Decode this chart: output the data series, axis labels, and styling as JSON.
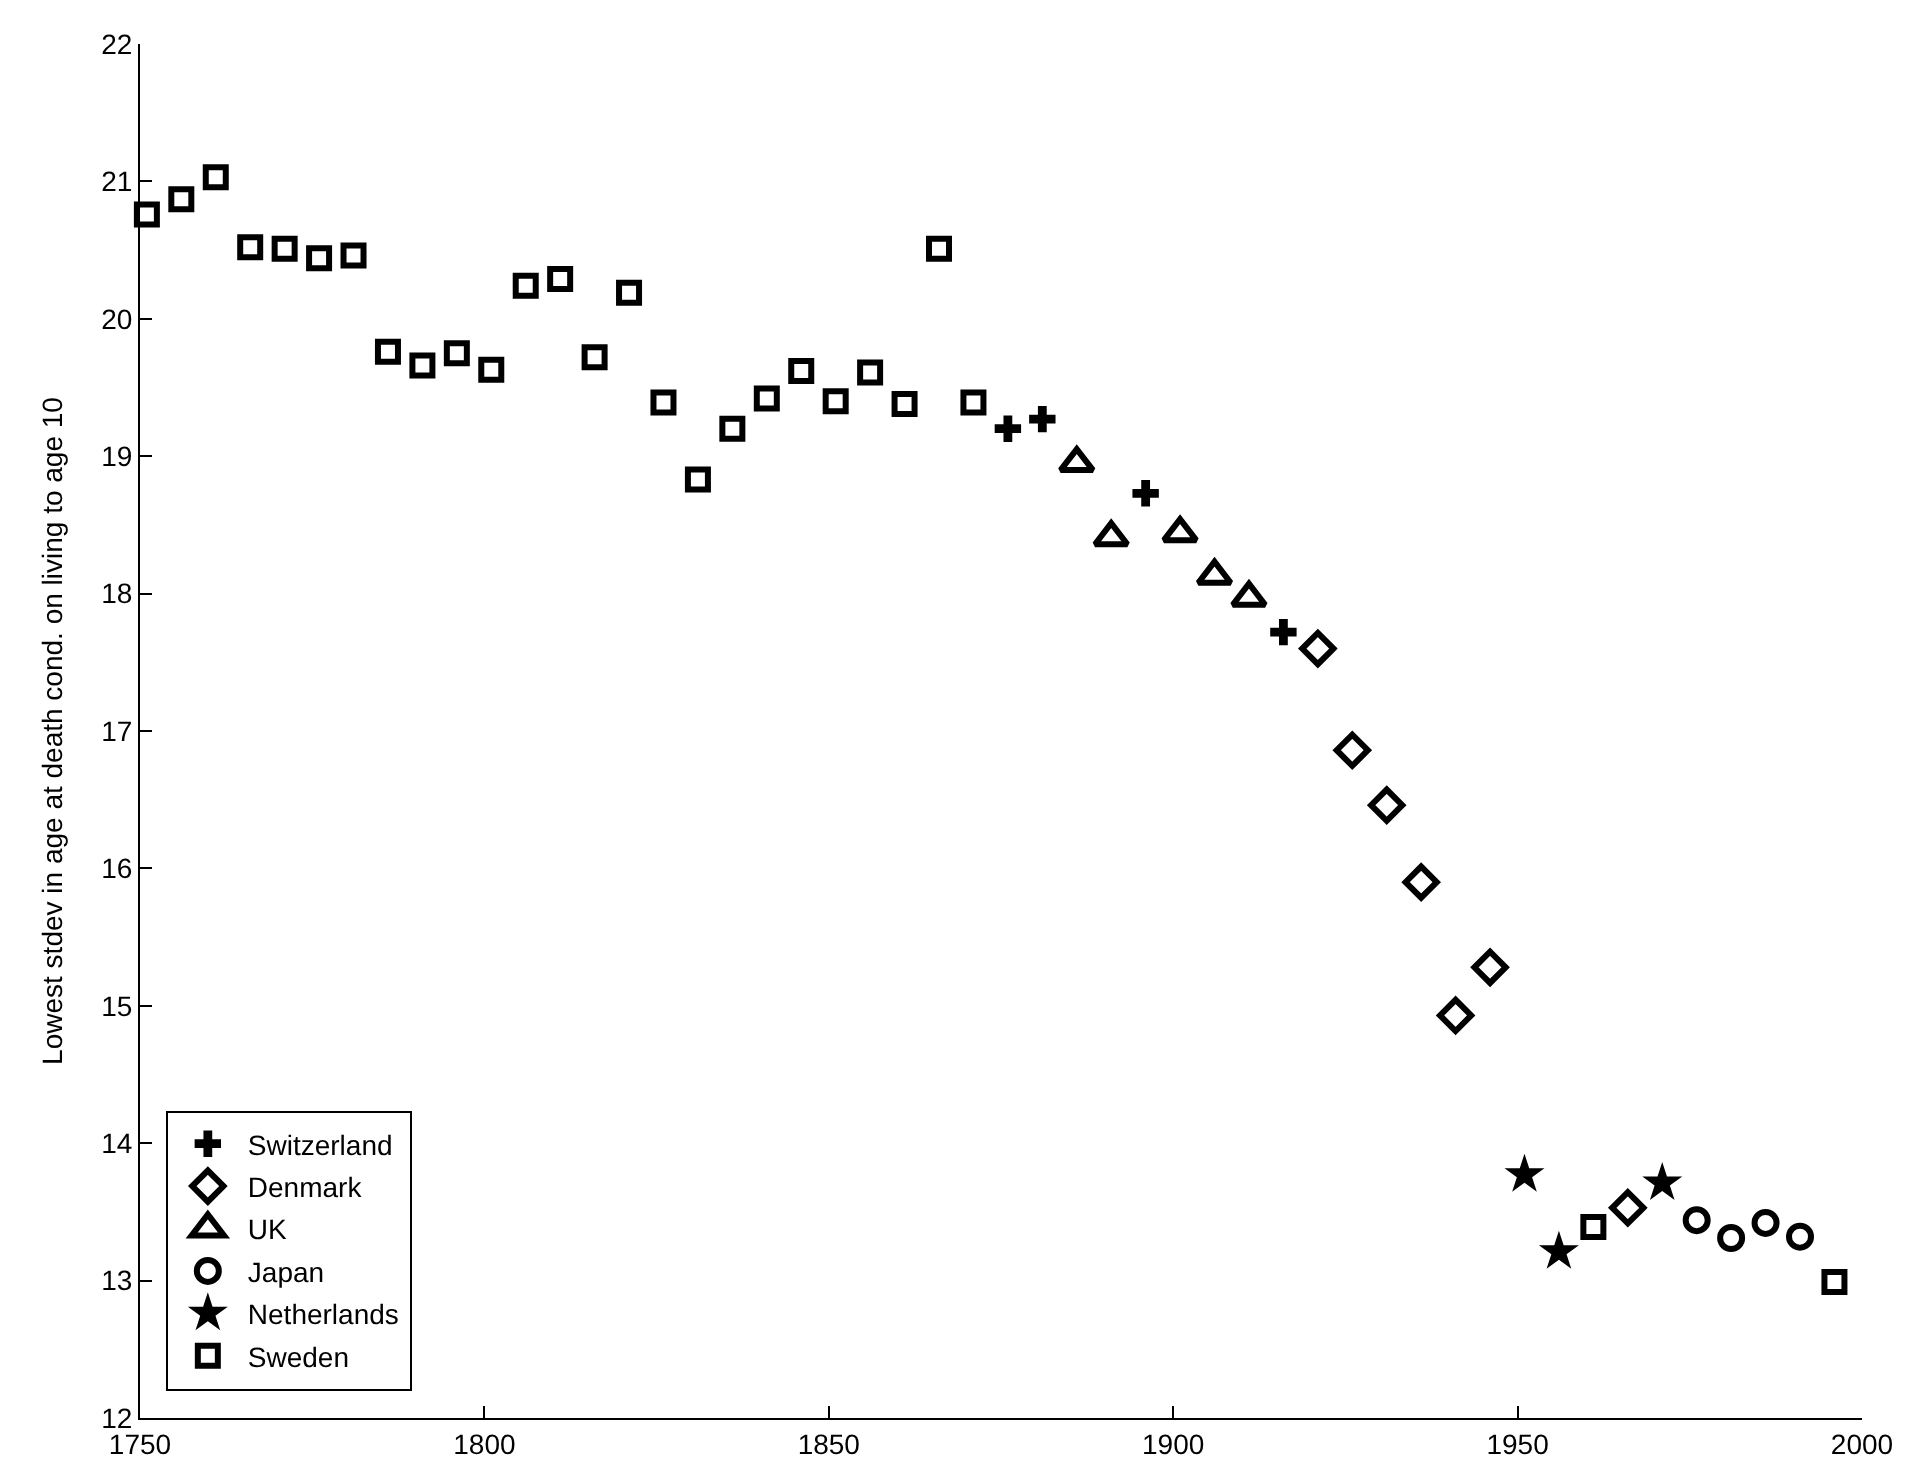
{
  "chart_data": {
    "type": "scatter",
    "ylabel": "Lowest stdev in age at death cond. on living to age 10",
    "xlim": [
      1750,
      2000
    ],
    "xticks": [
      1750,
      1800,
      1850,
      1900,
      1950,
      2000
    ],
    "ylim": [
      12,
      22
    ],
    "yticks": [
      12,
      13,
      14,
      15,
      16,
      17,
      18,
      19,
      20,
      21,
      22
    ],
    "legend": "bottom left",
    "series": [
      {
        "name": "Switzerland",
        "color": "#000000",
        "marker": "cross",
        "x": [
          1876,
          1881,
          1896,
          1916
        ],
        "values": [
          19.2,
          19.27,
          18.73,
          17.72
        ]
      },
      {
        "name": "Denmark",
        "color": "#000000",
        "marker": "diamond",
        "x": [
          1921,
          1926,
          1931,
          1936,
          1941,
          1946,
          1966
        ],
        "values": [
          17.6,
          16.86,
          16.46,
          15.9,
          14.93,
          15.28,
          13.53
        ]
      },
      {
        "name": "UK",
        "color": "#000000",
        "marker": "triangle",
        "x": [
          1886,
          1891,
          1901,
          1906,
          1911
        ],
        "values": [
          18.95,
          18.41,
          18.44,
          18.13,
          17.97
        ]
      },
      {
        "name": "Japan",
        "color": "#000000",
        "marker": "circle",
        "x": [
          1976,
          1981,
          1986,
          1991
        ],
        "values": [
          13.44,
          13.31,
          13.42,
          13.32
        ]
      },
      {
        "name": "Netherlands",
        "color": "#000000",
        "marker": "star",
        "x": [
          1951,
          1956,
          1971
        ],
        "values": [
          13.77,
          13.21,
          13.71
        ]
      },
      {
        "name": "Sweden",
        "color": "#000000",
        "marker": "square",
        "x": [
          1751,
          1756,
          1761,
          1766,
          1771,
          1776,
          1781,
          1786,
          1791,
          1796,
          1801,
          1806,
          1811,
          1816,
          1821,
          1826,
          1831,
          1836,
          1841,
          1846,
          1851,
          1856,
          1861,
          1866,
          1871,
          1961,
          1996
        ],
        "values": [
          20.76,
          20.87,
          21.03,
          20.52,
          20.51,
          20.44,
          20.46,
          19.76,
          19.66,
          19.75,
          19.63,
          20.24,
          20.29,
          19.72,
          20.19,
          19.39,
          18.83,
          19.2,
          19.42,
          19.62,
          19.4,
          19.61,
          19.38,
          20.51,
          19.39,
          13.39,
          12.99
        ]
      }
    ]
  }
}
